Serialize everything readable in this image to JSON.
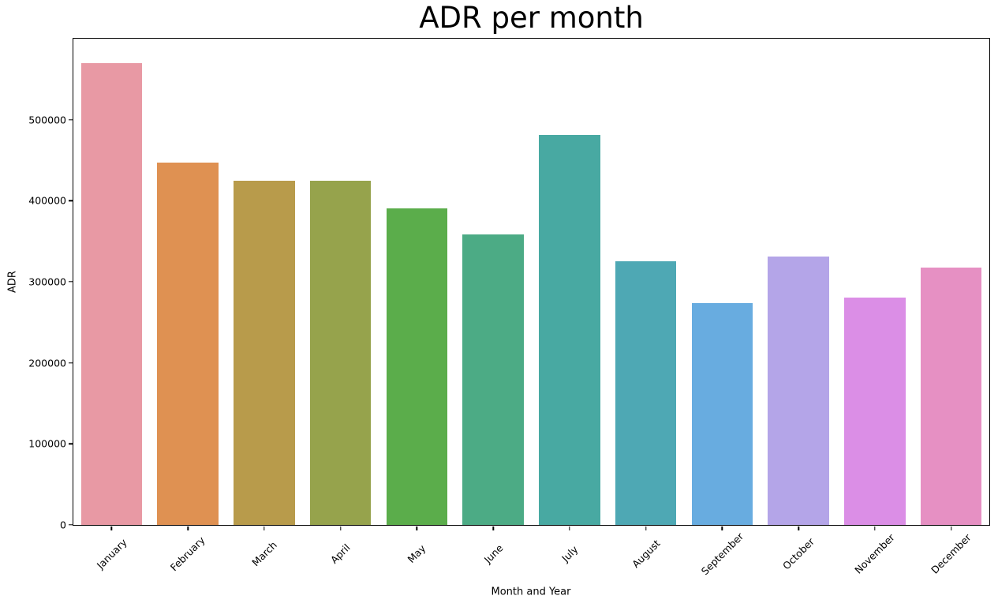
{
  "figure": {
    "background": "#ffffff",
    "axis_color": "#000000"
  },
  "chart_data": {
    "type": "bar",
    "title": "ADR per month",
    "xlabel": "Month and Year",
    "ylabel": "ADR",
    "categories": [
      "January",
      "February",
      "March",
      "April",
      "May",
      "June",
      "July",
      "August",
      "September",
      "October",
      "November",
      "December"
    ],
    "values": [
      570000,
      447000,
      425000,
      425000,
      391000,
      358000,
      481000,
      325000,
      274000,
      331000,
      281000,
      318000
    ],
    "bar_colors": [
      "#e899a4",
      "#df9152",
      "#b89b4b",
      "#96a34c",
      "#5bad4b",
      "#4cab85",
      "#48a9a2",
      "#4ea8b4",
      "#68ace0",
      "#b4a5e8",
      "#db8ee6",
      "#e690c3"
    ],
    "yticks": [
      0,
      100000,
      200000,
      300000,
      400000,
      500000
    ],
    "ytick_labels": [
      "0",
      "100000",
      "200000",
      "300000",
      "400000",
      "500000"
    ],
    "ylim": [
      0,
      600000
    ],
    "bar_width_fraction": 0.8,
    "x_tick_rotation": 45,
    "grid": false,
    "legend": null
  }
}
